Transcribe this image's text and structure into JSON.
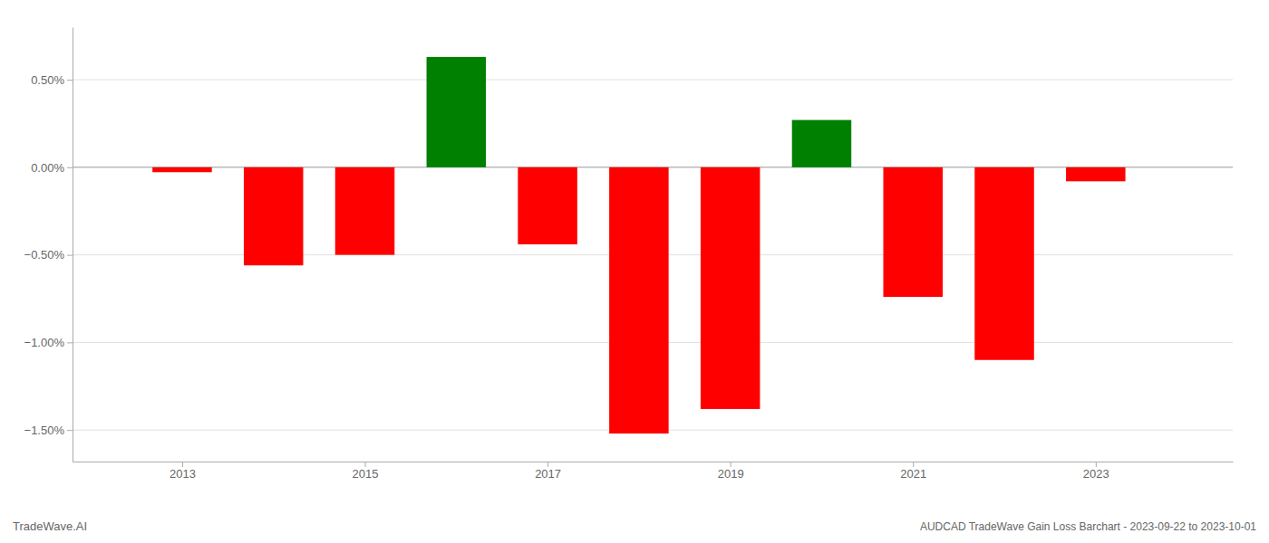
{
  "chart_data": {
    "type": "bar",
    "title": "AUDCAD TradeWave Gain Loss Barchart - 2023-09-22 to 2023-10-01",
    "annotations": [
      "TradeWave.AI"
    ],
    "x": [
      2013,
      2014,
      2015,
      2016,
      2017,
      2018,
      2019,
      2020,
      2021,
      2022,
      2023
    ],
    "values": [
      -0.028,
      -0.56,
      -0.5,
      0.63,
      -0.44,
      -1.52,
      -1.38,
      0.27,
      -0.74,
      -1.1,
      -0.08
    ],
    "colors": [
      "#ff0000",
      "#ff0000",
      "#ff0000",
      "#008000",
      "#ff0000",
      "#ff0000",
      "#ff0000",
      "#008000",
      "#ff0000",
      "#ff0000",
      "#ff0000"
    ],
    "xlim": [
      2011.8,
      2024.5
    ],
    "xticks": [
      2013,
      2015,
      2017,
      2019,
      2021,
      2023
    ],
    "ylim": [
      -1.68,
      0.8
    ],
    "yticks": [
      {
        "value": -1.5,
        "label": "−1.50%"
      },
      {
        "value": -1.0,
        "label": "−1.00%"
      },
      {
        "value": -0.5,
        "label": "−0.50%"
      },
      {
        "value": 0.0,
        "label": "0.00%"
      },
      {
        "value": 0.5,
        "label": "0.50%"
      }
    ],
    "grid": true
  }
}
